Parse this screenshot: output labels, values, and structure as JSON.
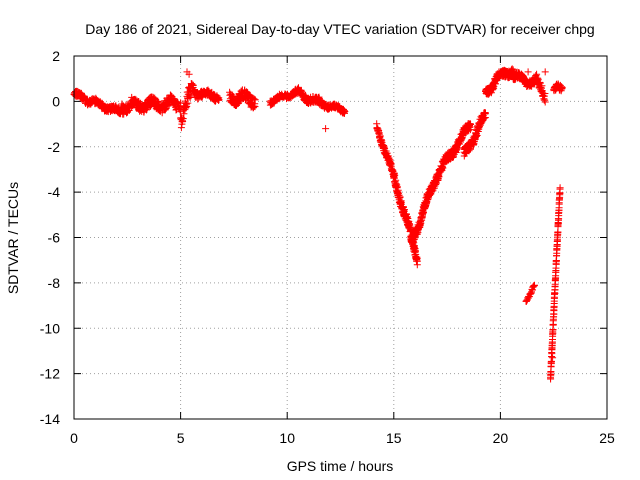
{
  "chart_data": {
    "type": "scatter",
    "title": "Day 186 of 2021, Sidereal Day-to-day VTEC variation (SDTVAR) for receiver chpg",
    "xlabel": "GPS time / hours",
    "ylabel": "SDTVAR / TECUs",
    "xlim": [
      0,
      25
    ],
    "ylim": [
      -14,
      2
    ],
    "xticks": [
      0,
      5,
      10,
      15,
      20,
      25
    ],
    "yticks": [
      2,
      0,
      -2,
      -4,
      -6,
      -8,
      -10,
      -12,
      -14
    ],
    "grid": true,
    "marker": "+",
    "series": [
      {
        "name": "SDTVAR",
        "color": "#ff0000",
        "segments": [
          {
            "x_start": 0.0,
            "x_end": 2.2,
            "y_start": 0.3,
            "y_end": -0.5,
            "noise": 0.25,
            "spacing": 0.012
          },
          {
            "x_start": 2.2,
            "x_end": 5.0,
            "y_start": -0.2,
            "y_end": -0.1,
            "noise": 0.45,
            "spacing": 0.012
          },
          {
            "x_start": 5.0,
            "x_end": 5.6,
            "y_start": -0.8,
            "y_end": 0.6,
            "noise": 0.6,
            "spacing": 0.012
          },
          {
            "x_start": 5.6,
            "x_end": 6.8,
            "y_start": 0.4,
            "y_end": 0.2,
            "noise": 0.3,
            "spacing": 0.012
          },
          {
            "x_start": 7.3,
            "x_end": 8.5,
            "y_start": 0.2,
            "y_end": 0.1,
            "noise": 0.45,
            "spacing": 0.012
          },
          {
            "x_start": 9.2,
            "x_end": 10.4,
            "y_start": 0.0,
            "y_end": 0.4,
            "noise": 0.2,
            "spacing": 0.012
          },
          {
            "x_start": 10.4,
            "x_end": 11.6,
            "y_start": 0.4,
            "y_end": -0.1,
            "noise": 0.3,
            "spacing": 0.012
          },
          {
            "x_start": 11.6,
            "x_end": 12.7,
            "y_start": -0.1,
            "y_end": -0.4,
            "noise": 0.2,
            "spacing": 0.012
          },
          {
            "x_start": 14.2,
            "x_end": 15.0,
            "y_start": -1.1,
            "y_end": -3.3,
            "noise": 0.25,
            "spacing": 0.008
          },
          {
            "x_start": 15.0,
            "x_end": 16.1,
            "y_start": -3.3,
            "y_end": -6.9,
            "noise": 0.35,
            "spacing": 0.006
          },
          {
            "x_start": 15.8,
            "x_end": 17.0,
            "y_start": -6.3,
            "y_end": -3.3,
            "noise": 0.35,
            "spacing": 0.006
          },
          {
            "x_start": 17.0,
            "x_end": 18.6,
            "y_start": -3.3,
            "y_end": -1.0,
            "noise": 0.35,
            "spacing": 0.008
          },
          {
            "x_start": 18.3,
            "x_end": 19.3,
            "y_start": -2.4,
            "y_end": -0.6,
            "noise": 0.35,
            "spacing": 0.008
          },
          {
            "x_start": 19.3,
            "x_end": 19.8,
            "y_start": 0.3,
            "y_end": 1.0,
            "noise": 0.35,
            "spacing": 0.008
          },
          {
            "x_start": 19.8,
            "x_end": 20.6,
            "y_start": 1.0,
            "y_end": 1.4,
            "noise": 0.3,
            "spacing": 0.008
          },
          {
            "x_start": 20.6,
            "x_end": 21.6,
            "y_start": 1.1,
            "y_end": 0.8,
            "noise": 0.3,
            "spacing": 0.008
          },
          {
            "x_start": 21.6,
            "x_end": 22.1,
            "y_start": 0.9,
            "y_end": 0.3,
            "noise": 0.4,
            "spacing": 0.012
          },
          {
            "x_start": 22.5,
            "x_end": 22.9,
            "y_start": 0.5,
            "y_end": 0.6,
            "noise": 0.3,
            "spacing": 0.012
          },
          {
            "x_start": 21.2,
            "x_end": 21.6,
            "y_start": -8.8,
            "y_end": -8.1,
            "noise": 0.1,
            "spacing": 0.02
          },
          {
            "x_start": 22.35,
            "x_end": 22.8,
            "y_start": -12.2,
            "y_end": -3.8,
            "noise": 0.2,
            "spacing": 0.004
          }
        ],
        "isolated_points": [
          {
            "x": 5.3,
            "y": 1.3
          },
          {
            "x": 5.4,
            "y": 1.2
          },
          {
            "x": 11.8,
            "y": -1.2
          },
          {
            "x": 21.3,
            "y": 1.3
          },
          {
            "x": 21.7,
            "y": 1.2
          },
          {
            "x": 22.1,
            "y": 1.3
          },
          {
            "x": 16.1,
            "y": -7.2
          },
          {
            "x": 22.45,
            "y": -11.3
          }
        ]
      }
    ]
  }
}
